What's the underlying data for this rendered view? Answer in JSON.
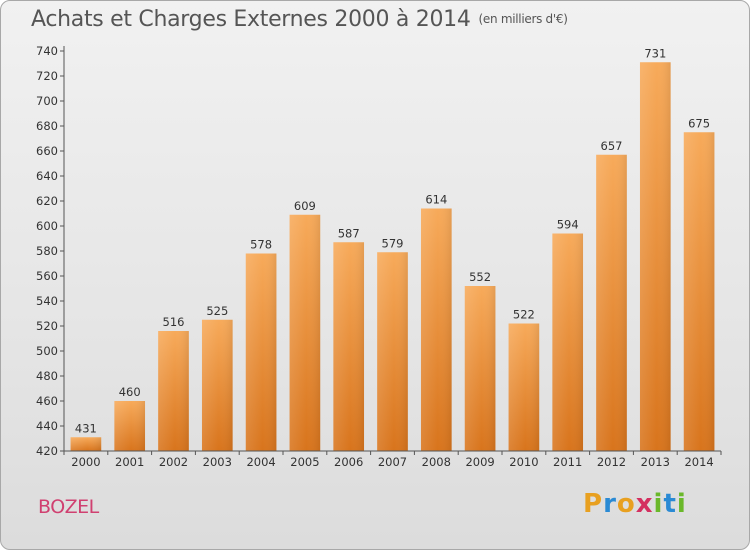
{
  "title": "Achats et Charges Externes 2000 à 2014",
  "subtitle": "(en milliers d'€)",
  "location": "BOZEL",
  "brand": {
    "letters": [
      "P",
      "r",
      "o",
      "x",
      "i",
      "t",
      "i"
    ],
    "colors": [
      "#e8a020",
      "#2a8ad4",
      "#e8a020",
      "#d43060",
      "#6ab82a",
      "#2a8ad4",
      "#6ab82a"
    ]
  },
  "chart_data": {
    "type": "bar",
    "categories": [
      "2000",
      "2001",
      "2002",
      "2003",
      "2004",
      "2005",
      "2006",
      "2007",
      "2008",
      "2009",
      "2010",
      "2011",
      "2012",
      "2013",
      "2014"
    ],
    "values": [
      431,
      460,
      516,
      525,
      578,
      609,
      587,
      579,
      614,
      552,
      522,
      594,
      657,
      731,
      675
    ],
    "data_labels": [
      "431",
      "460",
      "516",
      "525",
      "578",
      "609",
      "587",
      "579",
      "614",
      "552",
      "522",
      "594",
      "657",
      "731",
      "675"
    ],
    "y_ticks": [
      "420",
      "440",
      "460",
      "480",
      "500",
      "520",
      "540",
      "560",
      "580",
      "600",
      "620",
      "640",
      "660",
      "680",
      "700",
      "720",
      "740"
    ],
    "ylim": [
      420,
      740
    ],
    "bar_color": "#ef8a30",
    "grid": false
  }
}
